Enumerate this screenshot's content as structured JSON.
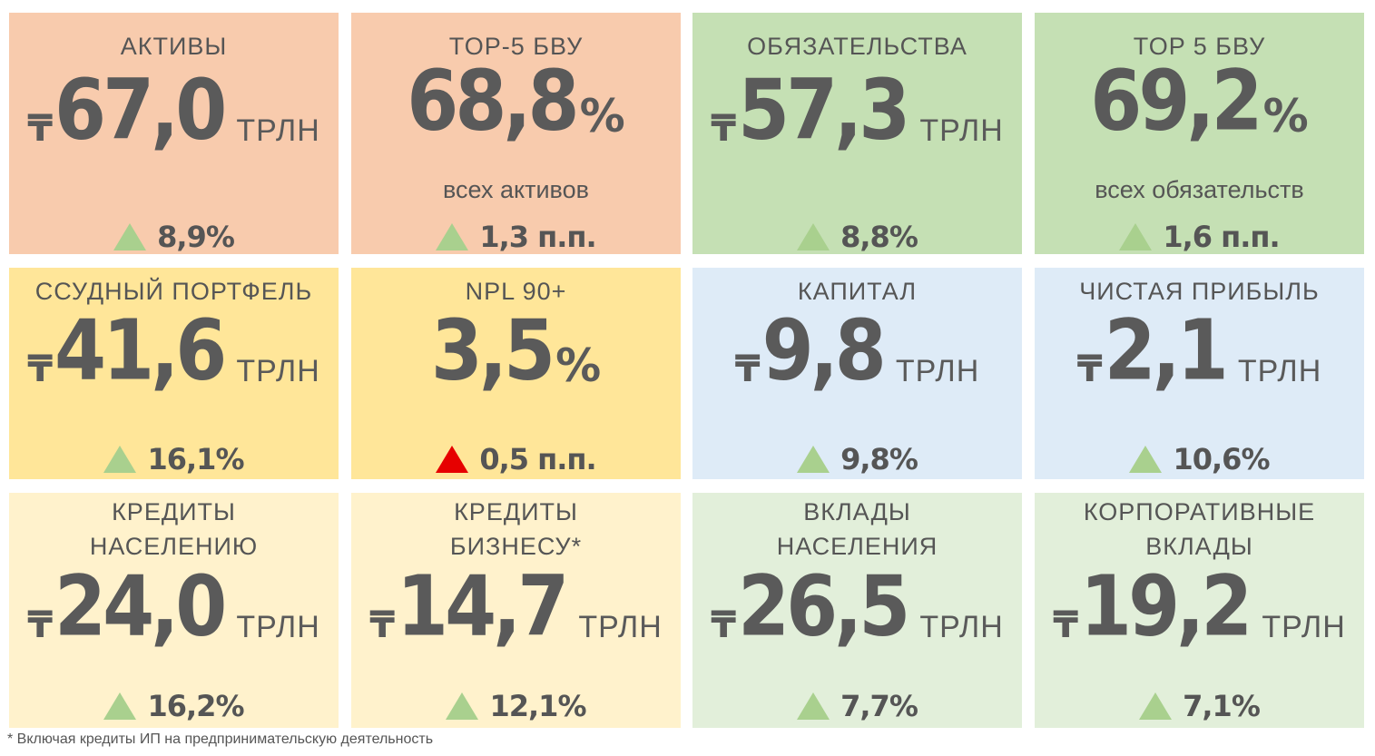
{
  "colors": {
    "salmon": "#f8cbad",
    "green": "#c5e0b4",
    "yellow": "#ffe699",
    "blue": "#deebf7",
    "light_yellow": "#fff2cc",
    "light_green": "#e2efda",
    "up_arrow": "#a9d08e",
    "up_arrow_red": "#e60000"
  },
  "currency_symbol": "₸",
  "unit": "ТРЛН",
  "cards": [
    {
      "title": "АКТИВЫ",
      "value": "67,0",
      "change": "8,9%"
    },
    {
      "title": "TOP-5 БВУ",
      "value": "68,8",
      "pct": "%",
      "sub": "всех активов",
      "change": "1,3 п.п."
    },
    {
      "title": "ОБЯЗАТЕЛЬСТВА",
      "value": "57,3",
      "change": "8,8%"
    },
    {
      "title": "TOP 5 БВУ",
      "value": "69,2",
      "pct": "%",
      "sub": "всех обязательств",
      "change": "1,6 п.п."
    },
    {
      "title": "ССУДНЫЙ ПОРТФЕЛЬ",
      "value": "41,6",
      "change": "16,1%"
    },
    {
      "title": "NPL 90+",
      "value": "3,5",
      "pct": "%",
      "change": "0,5 п.п."
    },
    {
      "title": "КАПИТАЛ",
      "value": "9,8",
      "change": "9,8%"
    },
    {
      "title": "ЧИСТАЯ ПРИБЫЛЬ",
      "value": "2,1",
      "change": "10,6%"
    },
    {
      "title1": "КРЕДИТЫ",
      "title2": "НАСЕЛЕНИЮ",
      "value": "24,0",
      "change": "16,2%"
    },
    {
      "title1": "КРЕДИТЫ",
      "title2": "БИЗНЕСУ*",
      "value": "14,7",
      "change": "12,1%"
    },
    {
      "title1": "ВКЛАДЫ",
      "title2": "НАСЕЛЕНИЯ",
      "value": "26,5",
      "change": "7,7%"
    },
    {
      "title1": "КОРПОРАТИВНЫЕ",
      "title2": "ВКЛАДЫ",
      "value": "19,2",
      "change": "7,1%"
    }
  ],
  "footnote": "* Включая кредиты ИП на предпринимательскую деятельность"
}
